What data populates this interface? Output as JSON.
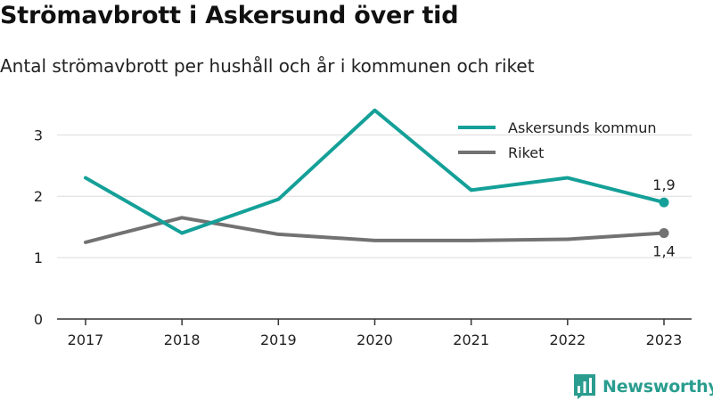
{
  "header": {
    "title": "Strömavbrott i Askersund över tid",
    "subtitle": "Antal strömavbrott per hushåll och år i kommunen och riket"
  },
  "chart_data": {
    "type": "line",
    "x": [
      "2017",
      "2018",
      "2019",
      "2020",
      "2021",
      "2022",
      "2023"
    ],
    "ylim": [
      0,
      3.6
    ],
    "yticks": [
      "0",
      "1",
      "2",
      "3"
    ],
    "grid": true,
    "legend_position": "top-right",
    "series": [
      {
        "name": "Askersunds kommun",
        "color": "#14a098",
        "values": [
          2.3,
          1.4,
          1.95,
          3.4,
          2.1,
          2.3,
          1.9
        ],
        "end_label": "1,9"
      },
      {
        "name": "Riket",
        "color": "#727272",
        "values": [
          1.25,
          1.65,
          1.38,
          1.28,
          1.28,
          1.3,
          1.4
        ],
        "end_label": "1,4"
      }
    ]
  },
  "brand": {
    "name": "Newsworthy",
    "icon": "newsworthy-logo-icon",
    "color": "#2a9d8f"
  }
}
